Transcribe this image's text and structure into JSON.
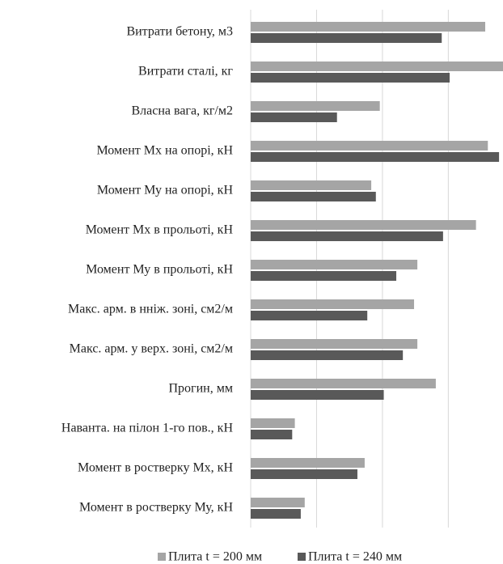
{
  "chart_data": {
    "type": "barh",
    "categories": [
      "Витрати бетону, м3",
      "Витрати сталі, кг",
      "Власна вага, кг/м2",
      "Момент Мх на опорі, кН",
      "Момент Му на опорі, кН",
      "Момент Мх в прольоті, кН",
      "Момент Му  в прольоті, кН",
      "Макс. арм. в нніж. зоні, см2/м",
      "Макс. арм. у верх. зоні, см2/м",
      "Прогин, мм",
      "Наванта. на пілон 1-го пов., кН",
      "Момент в ростверку Мх, кН",
      "Момент в ростверку Му, кН"
    ],
    "series": [
      {
        "name": "Плита t = 200 мм",
        "color": "#a5a5a5",
        "values": [
          3.56,
          3.83,
          1.96,
          3.6,
          1.83,
          3.42,
          2.53,
          2.48,
          2.53,
          2.81,
          0.67,
          1.73,
          0.82
        ]
      },
      {
        "name": "Плита t = 240 мм",
        "color": "#595959",
        "values": [
          2.9,
          3.02,
          1.31,
          3.77,
          1.9,
          2.92,
          2.21,
          1.77,
          2.31,
          2.02,
          0.63,
          1.62,
          0.76
        ]
      }
    ],
    "xlim": [
      0,
      3.83
    ],
    "xticks": [
      0,
      1,
      2,
      3
    ],
    "grid": true,
    "legend": "bottom"
  }
}
